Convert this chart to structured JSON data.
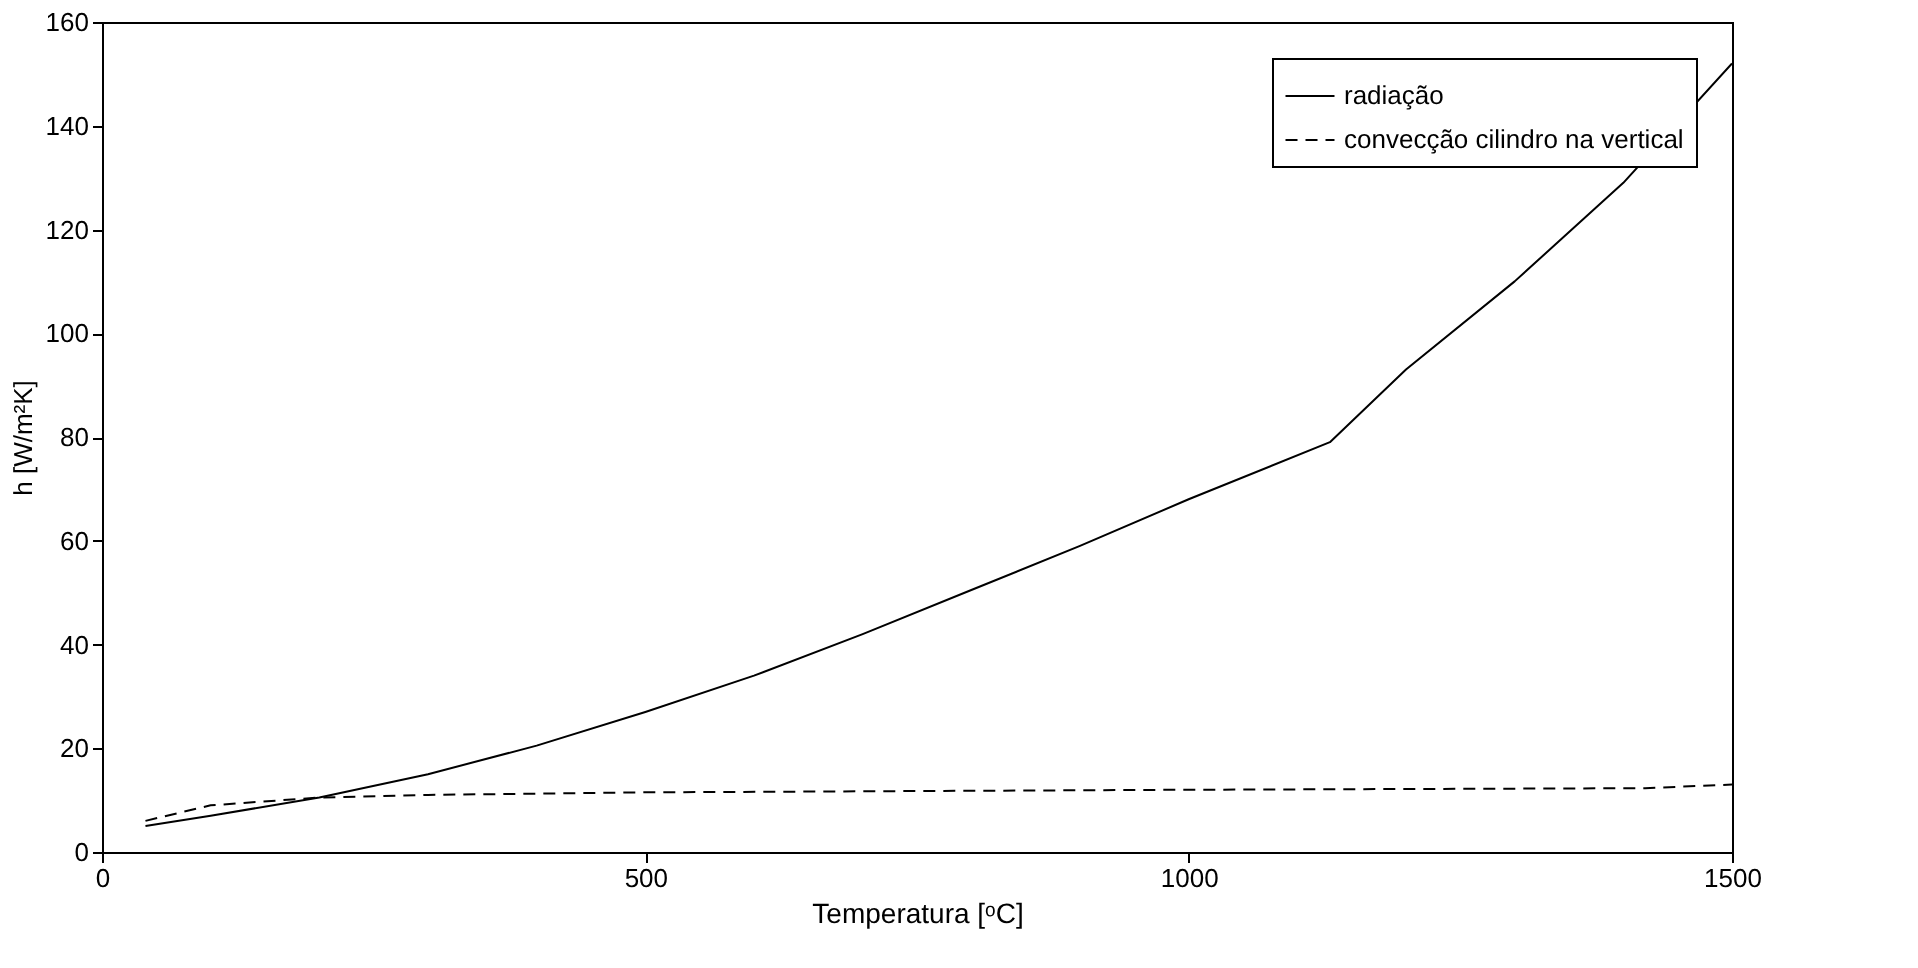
{
  "chart_data": {
    "type": "line",
    "xlabel": "Temperatura [ᵒC]",
    "ylabel": "h [W/m²K]",
    "xlim": [
      0,
      1500
    ],
    "xticks": [
      0,
      500,
      1000,
      1500
    ],
    "ylim": [
      0,
      160
    ],
    "yticks": [
      0,
      20,
      40,
      60,
      80,
      100,
      120,
      140,
      160
    ],
    "grid": false,
    "legend": "top right",
    "series": [
      {
        "name": "radiação",
        "color": "#000000",
        "line_style": "solid",
        "x": [
          40,
          100,
          200,
          300,
          400,
          500,
          600,
          700,
          800,
          900,
          1000,
          1130,
          1200,
          1300,
          1400,
          1500
        ],
        "values": [
          5,
          7,
          10.5,
          15,
          20.5,
          27,
          34,
          42,
          50.5,
          59,
          68,
          79,
          93,
          110,
          129,
          152
        ]
      },
      {
        "name": "convecção cilindro na vertical",
        "color": "#000000",
        "line_style": "dashed",
        "x": [
          40,
          100,
          200,
          300,
          500,
          1000,
          1420,
          1500
        ],
        "values": [
          6,
          9,
          10.5,
          11,
          11.5,
          12,
          12.3,
          13
        ]
      }
    ]
  }
}
